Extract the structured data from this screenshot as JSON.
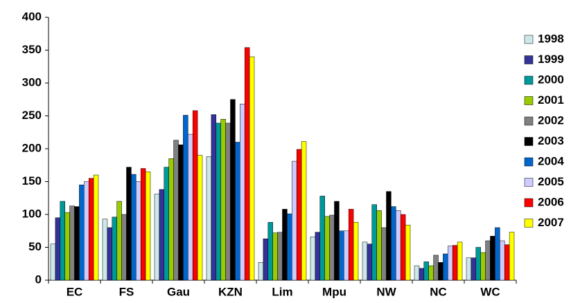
{
  "chart_data": {
    "type": "bar",
    "categories": [
      "EC",
      "FS",
      "Gau",
      "KZN",
      "Lim",
      "Mpu",
      "NW",
      "NC",
      "WC"
    ],
    "series": [
      {
        "name": "1998",
        "color": "#cce8e8",
        "values": [
          55,
          93,
          131,
          188,
          27,
          66,
          58,
          22,
          34
        ]
      },
      {
        "name": "1999",
        "color": "#333399",
        "values": [
          95,
          80,
          138,
          252,
          63,
          73,
          55,
          18,
          34
        ]
      },
      {
        "name": "2000",
        "color": "#009999",
        "values": [
          120,
          96,
          172,
          239,
          88,
          128,
          115,
          28,
          50
        ]
      },
      {
        "name": "2001",
        "color": "#99cc00",
        "values": [
          103,
          120,
          185,
          245,
          72,
          97,
          106,
          22,
          42
        ]
      },
      {
        "name": "2002",
        "color": "#808080",
        "values": [
          113,
          100,
          213,
          239,
          73,
          99,
          80,
          38,
          60
        ]
      },
      {
        "name": "2003",
        "color": "#000000",
        "values": [
          112,
          172,
          206,
          275,
          108,
          120,
          135,
          27,
          67
        ]
      },
      {
        "name": "2004",
        "color": "#0066cc",
        "values": [
          145,
          161,
          251,
          210,
          101,
          75,
          112,
          40,
          80
        ]
      },
      {
        "name": "2005",
        "color": "#ccccff",
        "values": [
          150,
          150,
          222,
          268,
          181,
          75,
          106,
          52,
          60
        ]
      },
      {
        "name": "2006",
        "color": "#ff0000",
        "values": [
          155,
          170,
          258,
          354,
          199,
          108,
          100,
          53,
          54
        ]
      },
      {
        "name": "2007",
        "color": "#ffff00",
        "values": [
          160,
          165,
          190,
          340,
          211,
          88,
          84,
          58,
          73
        ]
      }
    ],
    "ylim": [
      0,
      400
    ],
    "yticks": [
      0,
      50,
      100,
      150,
      200,
      250,
      300,
      350,
      400
    ],
    "legend": "right"
  }
}
